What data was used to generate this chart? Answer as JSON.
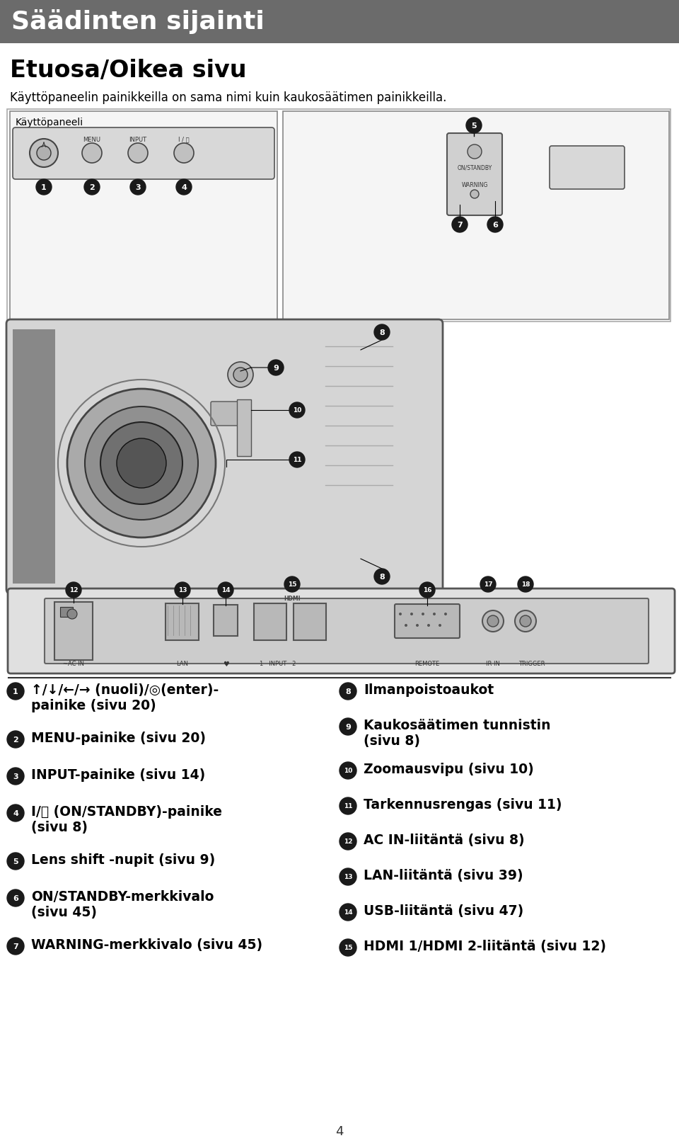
{
  "header_text": "Säädinten sijainti",
  "header_bg": "#6b6b6b",
  "header_text_color": "#ffffff",
  "section_title": "Etuosa/Oikea sivu",
  "subtitle": "Käyttöpaneelin painikkeilla on sama nimi kuin kaukosäätimen painikkeilla.",
  "kayttopaneeli_label": "Käyttöpaneeli",
  "bg_color": "#ffffff",
  "left_data": [
    [
      "1",
      "↑/↓/←/→ (nuoli)/◎(enter)-",
      "painike (sivu 20)"
    ],
    [
      "2",
      "MENU-painike (sivu 20)",
      ""
    ],
    [
      "3",
      "INPUT-painike (sivu 14)",
      ""
    ],
    [
      "4",
      "I/⏻ (ON/STANDBY)-painike",
      "(sivu 8)"
    ],
    [
      "5",
      "Lens shift -nupit (sivu 9)",
      ""
    ],
    [
      "6",
      "ON/STANDBY-merkkivalo",
      "(sivu 45)"
    ],
    [
      "7",
      "WARNING-merkkivalo (sivu 45)",
      ""
    ]
  ],
  "right_data": [
    [
      "8",
      "Ilmanpoistoaukot",
      ""
    ],
    [
      "9",
      "Kaukosäätimen tunnistin",
      "(sivu 8)"
    ],
    [
      "10",
      "Zoomausvipu (sivu 10)",
      ""
    ],
    [
      "11",
      "Tarkennusrengas (sivu 11)",
      ""
    ],
    [
      "12",
      "AC IN-liitäntä (sivu 8)",
      ""
    ],
    [
      "13",
      "LAN-liitäntä (sivu 39)",
      ""
    ],
    [
      "14",
      "USB-liitäntä (sivu 47)",
      ""
    ],
    [
      "15",
      "HDMI 1/HDMI 2-liitäntä (sivu 12)",
      ""
    ]
  ],
  "page_number": "4"
}
